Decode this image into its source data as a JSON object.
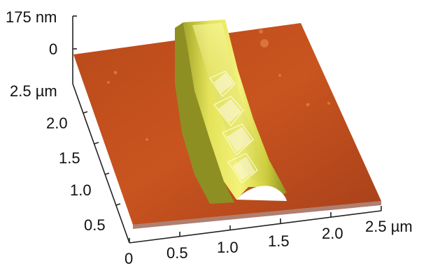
{
  "figure": {
    "z_axis": {
      "top_label": "175 nm",
      "zero_label": "0"
    },
    "y_axis": {
      "ticks": [
        "2.5 µm",
        "2.0",
        "1.5",
        "1.0",
        "0.5"
      ]
    },
    "x_axis": {
      "ticks": [
        "0",
        "0.5",
        "1.0",
        "1.5",
        "2.0",
        "2.5 µm"
      ]
    },
    "colors": {
      "substrate_top": "#c84f1c",
      "substrate_side": "#7a2a10",
      "ridge_bright": "#f2f06a",
      "ridge_mid": "#cfd23c",
      "ridge_dark": "#8c8f22",
      "axis": "#222222"
    }
  }
}
